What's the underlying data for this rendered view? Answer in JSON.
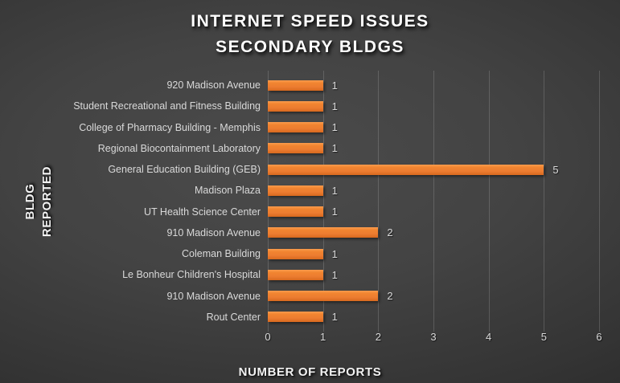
{
  "title": {
    "line1": "INTERNET SPEED ISSUES",
    "line2": "SECONDARY BLDGS"
  },
  "chart_data": {
    "type": "bar",
    "orientation": "horizontal",
    "title": "INTERNET SPEED ISSUES SECONDARY BLDGS",
    "categories": [
      "920 Madison Avenue",
      "Student Recreational and Fitness Building",
      "College of Pharmacy Building - Memphis",
      "Regional Biocontainment Laboratory",
      "General Education Building (GEB)",
      "Madison Plaza",
      "UT Health Science Center",
      "910 Madison Avenue",
      "Coleman Building",
      "Le Bonheur Children's Hospital",
      "910 Madison Avenue",
      "Rout Center"
    ],
    "values": [
      1,
      1,
      1,
      1,
      5,
      1,
      1,
      2,
      1,
      1,
      2,
      1
    ],
    "data_labels_shown": true,
    "xlabel": "NUMBER OF REPORTS",
    "ylabel": "BLDG REPORTED",
    "ylabel_lines": [
      "BLDG",
      "REPORTED"
    ],
    "xlim": [
      0,
      6
    ],
    "xticks": [
      0,
      1,
      2,
      3,
      4,
      5,
      6
    ],
    "grid": "vertical",
    "legend": "none",
    "colors": {
      "bar": "#ED7D31",
      "text": "#D9D9D9",
      "title_text": "#FFFFFF",
      "background_center": "#4B4B4B",
      "background_edge": "#232323",
      "gridline": "#5A5A5A"
    }
  }
}
